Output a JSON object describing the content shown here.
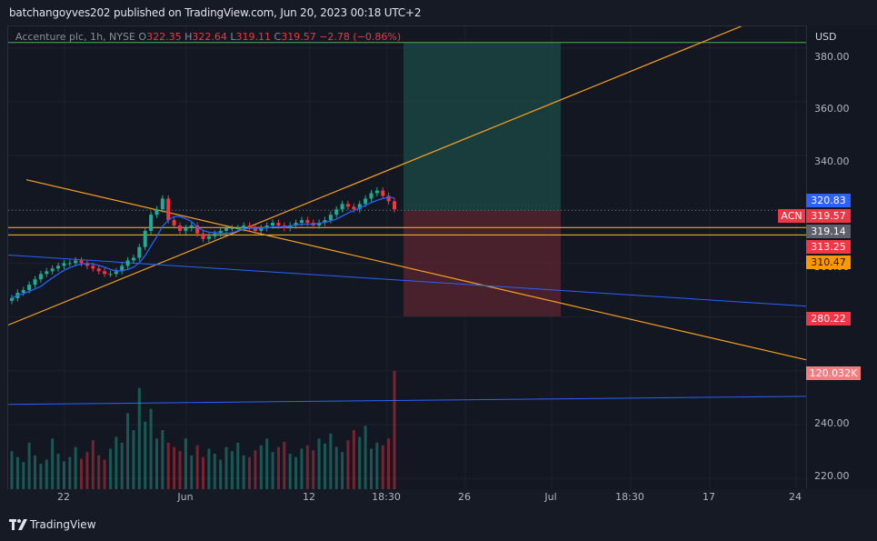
{
  "header": {
    "published": "batchangoyves202 published on TradingView.com, Jun 20, 2023 00:18 UTC+2"
  },
  "legend": {
    "symbol": "Accenture plc, 1h, NYSE",
    "o_label": "O",
    "o": "322.35",
    "h_label": "H",
    "h": "322.64",
    "l_label": "L",
    "l": "319.11",
    "c_label": "C",
    "c": "319.57",
    "change": "−2.78 (−0.86%)"
  },
  "axis": {
    "currency": "USD",
    "ticker_tag": "ACN"
  },
  "price_tags": {
    "top_tp": "320.83",
    "last": "319.57",
    "mid": "319.14",
    "red": "313.25",
    "orange": "310.47",
    "stop": "280.22",
    "volume": "120.032K"
  },
  "footer": {
    "brand": "TradingView"
  },
  "colors": {
    "up": "#22ab94",
    "down": "#f23645",
    "ma": "#2962ff",
    "trend": "#f7a021",
    "level": "#fbc02d"
  },
  "chart_data": {
    "type": "candlestick",
    "ylim": [
      216,
      388
    ],
    "y_ticks": [
      "380.00",
      "360.00",
      "340.00",
      "300.00",
      "240.00",
      "220.00"
    ],
    "x_ticks": [
      "22",
      "Jun",
      "12",
      "18:30",
      "26",
      "Jul",
      "18:30",
      "17",
      "24"
    ],
    "series": [
      {
        "name": "price",
        "close": [
          287,
          289,
          290,
          292,
          294,
          296,
          297,
          298,
          299,
          300,
          300,
          301,
          300,
          299,
          298,
          297,
          296,
          296,
          297,
          299,
          301,
          302,
          306,
          312,
          318,
          320,
          324,
          316,
          314,
          312,
          313,
          314,
          311,
          309,
          310,
          311,
          312,
          313,
          313,
          313,
          314,
          313,
          312,
          313,
          314,
          315,
          314,
          313,
          314,
          315,
          316,
          315,
          314,
          315,
          316,
          318,
          320,
          322,
          321,
          320,
          322,
          324,
          326,
          327,
          325,
          323,
          320
        ]
      },
      {
        "name": "volume",
        "values": [
          45,
          38,
          32,
          55,
          40,
          30,
          35,
          60,
          42,
          33,
          38,
          50,
          36,
          44,
          58,
          40,
          35,
          48,
          62,
          55,
          90,
          70,
          120,
          80,
          95,
          60,
          70,
          55,
          50,
          45,
          60,
          40,
          52,
          38,
          48,
          42,
          35,
          50,
          45,
          55,
          40,
          38,
          46,
          52,
          60,
          44,
          50,
          56,
          42,
          38,
          48,
          52,
          46,
          60,
          54,
          66,
          50,
          44,
          58,
          70,
          62,
          75,
          48,
          55,
          52,
          60,
          140
        ]
      }
    ],
    "levels": {
      "tp_high": 382,
      "entry": 319.57,
      "stop": 280.22
    }
  }
}
